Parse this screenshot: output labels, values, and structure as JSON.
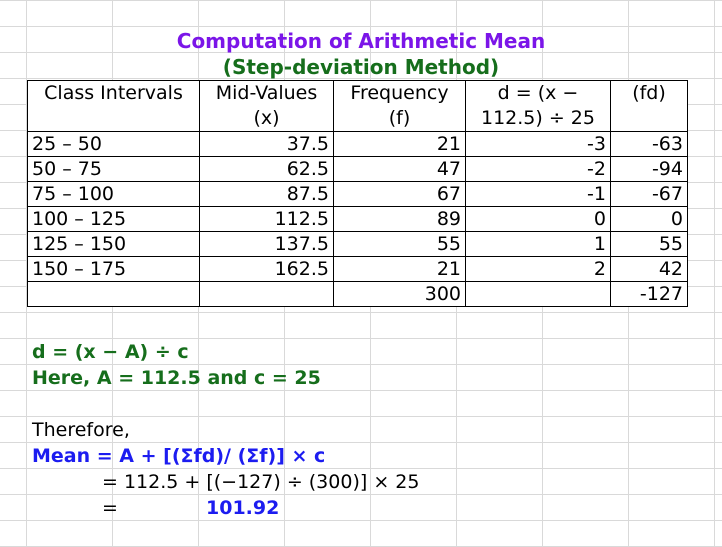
{
  "title": "Computation of Arithmetic Mean",
  "subtitle": "(Step-deviation Method)",
  "table": {
    "headers": [
      [
        "Class Intervals",
        ""
      ],
      [
        "Mid-Values",
        "(x)"
      ],
      [
        "Frequency",
        "(f)"
      ],
      [
        "d = (x −",
        "112.5) ÷ 25"
      ],
      [
        "(fd)",
        ""
      ]
    ],
    "rows": [
      [
        "25 – 50",
        "37.5",
        "21",
        "-3",
        "-63"
      ],
      [
        "50 – 75",
        "62.5",
        "47",
        "-2",
        "-94"
      ],
      [
        "75 – 100",
        "87.5",
        "67",
        "-1",
        "-67"
      ],
      [
        "100 – 125",
        "112.5",
        "89",
        "0",
        "0"
      ],
      [
        "125 – 150",
        "137.5",
        "55",
        "1",
        "55"
      ],
      [
        "150 – 175",
        "162.5",
        "21",
        "2",
        "42"
      ]
    ],
    "totals": [
      "",
      "",
      "300",
      "",
      "-127"
    ]
  },
  "formula": "d = (x − A) ÷ c",
  "here_line": "Here, A = 112.5 and c = 25",
  "therefore": "Therefore,",
  "mean_formula": "Mean = A + [(Σfd)/ (Σf)] × c",
  "substitution": "= 112.5 + [(−127) ÷ (300)] × 25",
  "equals_sign": "=",
  "result": "101.92",
  "colors": {
    "title": "#7b15e8",
    "subtitle": "#166e1c",
    "green_text": "#166e1c",
    "blue_text": "#1c1cf0",
    "gridline": "#d9d9d9"
  }
}
